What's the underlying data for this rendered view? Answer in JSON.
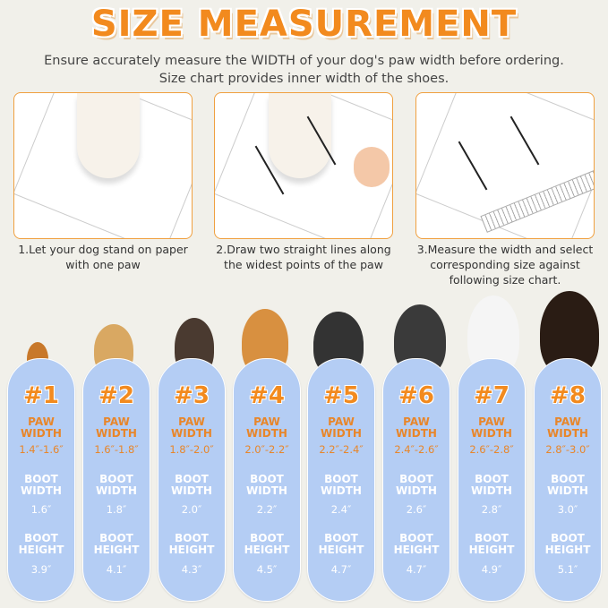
{
  "title": "SIZE MEASUREMENT",
  "subtitle": [
    "Ensure accurately measure the WIDTH of your dog's paw width before ordering.",
    "Size chart provides inner width of the shoes."
  ],
  "steps": [
    {
      "caption": [
        "1.Let your dog stand on paper",
        "with one paw"
      ]
    },
    {
      "caption": [
        "2.Draw two straight lines along",
        "the widest points of the paw"
      ]
    },
    {
      "caption": [
        "3.Measure the width and select",
        "corresponding size against",
        "following size chart."
      ]
    }
  ],
  "labels": {
    "paw": [
      "PAW",
      "WIDTH"
    ],
    "boot_width": [
      "BOOT",
      "WIDTH"
    ],
    "boot_height": [
      "BOOT",
      "HEIGHT"
    ]
  },
  "sizes": [
    {
      "num": "#1",
      "paw": "1.4″-1.6″",
      "bw": "1.6″",
      "bh": "3.9″"
    },
    {
      "num": "#2",
      "paw": "1.6″-1.8″",
      "bw": "1.8″",
      "bh": "4.1″"
    },
    {
      "num": "#3",
      "paw": "1.8″-2.0″",
      "bw": "2.0″",
      "bh": "4.3″"
    },
    {
      "num": "#4",
      "paw": "2.0″-2.2″",
      "bw": "2.2″",
      "bh": "4.5″"
    },
    {
      "num": "#5",
      "paw": "2.2″-2.4″",
      "bw": "2.4″",
      "bh": "4.7″"
    },
    {
      "num": "#6",
      "paw": "2.4″-2.6″",
      "bw": "2.6″",
      "bh": "4.7″"
    },
    {
      "num": "#7",
      "paw": "2.6″-2.8″",
      "bw": "2.8″",
      "bh": "4.9″"
    },
    {
      "num": "#8",
      "paw": "2.8″-3.0″",
      "bw": "3.0″",
      "bh": "5.1″"
    }
  ],
  "colors": {
    "accent": "#f28a1e",
    "pill": "#b4cdf4",
    "background": "#f1f0ea"
  }
}
